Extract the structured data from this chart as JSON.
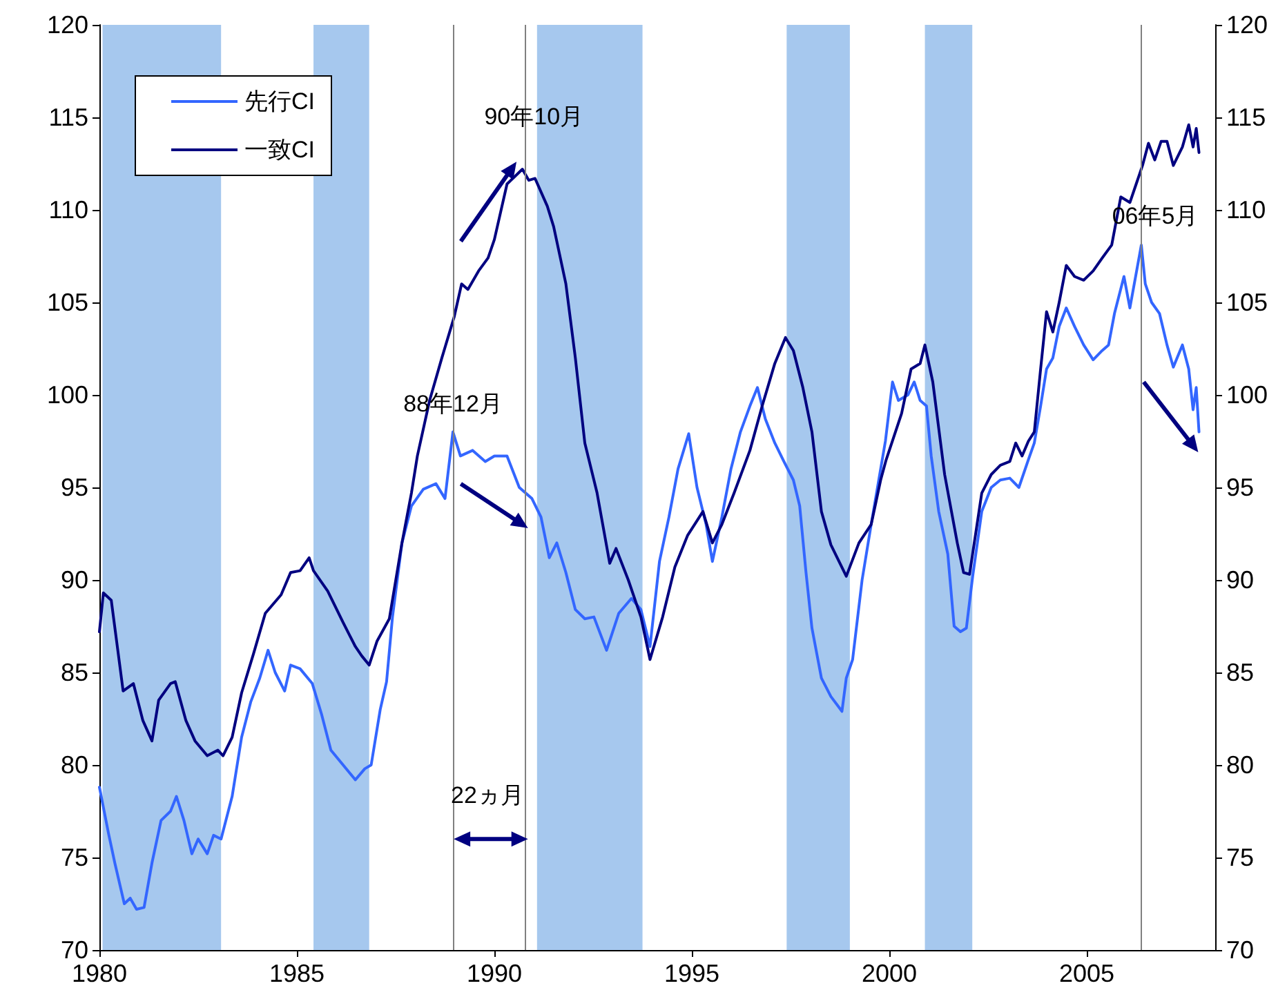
{
  "chart_data": {
    "type": "line",
    "xlim": [
      1980,
      2008.25
    ],
    "xticks": [
      1980,
      1985,
      1990,
      1995,
      2000,
      2005
    ],
    "ylim": [
      70,
      120
    ],
    "yticks": [
      70,
      75,
      80,
      85,
      90,
      95,
      100,
      105,
      110,
      115,
      120
    ],
    "y2lim": [
      70,
      120
    ],
    "y2ticks": [
      70,
      75,
      80,
      85,
      90,
      95,
      100,
      105,
      110,
      115,
      120
    ],
    "grid": false,
    "legend": "top left",
    "marker": "none",
    "line_style": "solid",
    "series": [
      {
        "name": "先行CI",
        "color": "#3366ff",
        "x": [
          1980.0,
          1980.23,
          1980.39,
          1980.63,
          1980.78,
          1980.94,
          1981.13,
          1981.33,
          1981.56,
          1981.8,
          1981.95,
          1982.14,
          1982.34,
          1982.5,
          1982.73,
          1982.89,
          1983.08,
          1983.36,
          1983.6,
          1983.83,
          1984.06,
          1984.27,
          1984.45,
          1984.69,
          1984.84,
          1985.08,
          1985.39,
          1985.63,
          1985.86,
          1986.17,
          1986.48,
          1986.72,
          1986.88,
          1987.11,
          1987.27,
          1987.42,
          1987.66,
          1987.9,
          1988.2,
          1988.52,
          1988.75,
          1988.95,
          1989.14,
          1989.45,
          1989.77,
          1990.0,
          1990.32,
          1990.63,
          1990.95,
          1991.18,
          1991.39,
          1991.58,
          1991.81,
          1992.05,
          1992.29,
          1992.52,
          1992.84,
          1993.15,
          1993.47,
          1993.71,
          1993.94,
          1994.18,
          1994.42,
          1994.65,
          1994.92,
          1995.13,
          1995.36,
          1995.52,
          1995.76,
          1995.99,
          1996.23,
          1996.47,
          1996.66,
          1996.86,
          1997.1,
          1997.33,
          1997.57,
          1997.73,
          1997.89,
          1998.04,
          1998.28,
          1998.52,
          1998.8,
          1998.91,
          1999.07,
          1999.31,
          1999.54,
          1999.9,
          2000.08,
          2000.23,
          2000.47,
          2000.63,
          2000.78,
          2000.94,
          2001.06,
          2001.25,
          2001.48,
          2001.64,
          2001.8,
          2001.95,
          2002.11,
          2002.34,
          2002.58,
          2002.81,
          2003.05,
          2003.28,
          2003.52,
          2003.67,
          2003.83,
          2003.98,
          2004.14,
          2004.3,
          2004.48,
          2004.69,
          2004.92,
          2005.16,
          2005.39,
          2005.55,
          2005.7,
          2005.94,
          2006.09,
          2006.38,
          2006.48,
          2006.64,
          2006.84,
          2007.03,
          2007.19,
          2007.42,
          2007.58,
          2007.69,
          2007.77,
          2007.84
        ],
        "values": [
          78.8,
          76.3,
          74.7,
          72.5,
          72.8,
          72.2,
          72.3,
          74.7,
          77.0,
          77.5,
          78.3,
          77.0,
          75.2,
          76.0,
          75.2,
          76.2,
          76.0,
          78.3,
          81.5,
          83.4,
          84.7,
          86.2,
          85.0,
          84.0,
          85.4,
          85.2,
          84.4,
          82.7,
          80.8,
          80.0,
          79.2,
          79.8,
          80.0,
          83.0,
          84.5,
          88.0,
          92.0,
          94.0,
          94.9,
          95.2,
          94.4,
          98.0,
          96.7,
          97.0,
          96.4,
          96.7,
          96.7,
          95.0,
          94.4,
          93.4,
          91.2,
          92.0,
          90.4,
          88.4,
          87.9,
          88.0,
          86.2,
          88.2,
          89.0,
          88.4,
          86.4,
          91.0,
          93.4,
          96.0,
          97.9,
          95.0,
          93.0,
          91.0,
          93.4,
          96.0,
          98.0,
          99.4,
          100.4,
          98.7,
          97.4,
          96.4,
          95.4,
          94.0,
          90.4,
          87.4,
          84.7,
          83.7,
          82.9,
          84.7,
          85.7,
          90.0,
          93.0,
          97.5,
          100.7,
          99.7,
          100.0,
          100.7,
          99.7,
          99.4,
          96.7,
          93.7,
          91.4,
          87.5,
          87.2,
          87.4,
          90.2,
          93.7,
          95.0,
          95.4,
          95.5,
          95.0,
          96.5,
          97.4,
          99.4,
          101.4,
          102.0,
          103.7,
          104.7,
          103.7,
          102.7,
          101.9,
          102.4,
          102.7,
          104.4,
          106.4,
          104.7,
          108.1,
          106.0,
          105.0,
          104.4,
          102.7,
          101.5,
          102.7,
          101.4,
          99.2,
          100.4,
          98.0
        ]
      },
      {
        "name": "一致CI",
        "color": "#000080",
        "x": [
          1980.0,
          1980.1,
          1980.3,
          1980.6,
          1980.86,
          1981.1,
          1981.33,
          1981.5,
          1981.8,
          1981.92,
          1982.19,
          1982.42,
          1982.73,
          1983.0,
          1983.13,
          1983.36,
          1983.6,
          1983.9,
          1984.2,
          1984.6,
          1984.84,
          1985.08,
          1985.31,
          1985.42,
          1985.78,
          1986.17,
          1986.48,
          1986.64,
          1986.83,
          1987.03,
          1987.34,
          1987.66,
          1987.9,
          1988.05,
          1988.36,
          1988.67,
          1988.98,
          1989.17,
          1989.33,
          1989.6,
          1989.84,
          1990.0,
          1990.32,
          1990.71,
          1990.87,
          1991.03,
          1991.34,
          1991.5,
          1991.81,
          1992.05,
          1992.29,
          1992.6,
          1992.92,
          1993.08,
          1993.39,
          1993.71,
          1993.94,
          1994.26,
          1994.57,
          1994.89,
          1995.28,
          1995.52,
          1995.76,
          1996.07,
          1996.47,
          1996.78,
          1997.1,
          1997.37,
          1997.57,
          1997.81,
          1998.04,
          1998.28,
          1998.52,
          1998.91,
          1999.23,
          1999.54,
          1999.78,
          1999.92,
          2000.31,
          2000.55,
          2000.78,
          2000.9,
          2001.1,
          2001.4,
          2001.72,
          2001.88,
          2002.03,
          2002.34,
          2002.58,
          2002.81,
          2003.05,
          2003.2,
          2003.36,
          2003.52,
          2003.67,
          2003.83,
          2003.98,
          2004.14,
          2004.3,
          2004.48,
          2004.69,
          2004.92,
          2005.16,
          2005.39,
          2005.63,
          2005.86,
          2006.09,
          2006.25,
          2006.41,
          2006.56,
          2006.72,
          2006.88,
          2007.03,
          2007.19,
          2007.42,
          2007.58,
          2007.69,
          2007.77,
          2007.84
        ],
        "values": [
          87.2,
          89.3,
          88.9,
          84.0,
          84.4,
          82.4,
          81.3,
          83.5,
          84.4,
          84.5,
          82.4,
          81.3,
          80.5,
          80.8,
          80.5,
          81.5,
          83.9,
          86.0,
          88.2,
          89.2,
          90.4,
          90.5,
          91.2,
          90.5,
          89.4,
          87.7,
          86.4,
          85.9,
          85.4,
          86.7,
          87.9,
          92.0,
          94.7,
          96.7,
          99.7,
          102.0,
          104.2,
          106.0,
          105.7,
          106.7,
          107.4,
          108.4,
          111.4,
          112.2,
          111.6,
          111.7,
          110.2,
          109.1,
          106.0,
          102.0,
          97.4,
          94.7,
          90.9,
          91.7,
          90.0,
          88.0,
          85.7,
          88.0,
          90.7,
          92.4,
          93.7,
          92.0,
          93.0,
          94.7,
          97.0,
          99.4,
          101.7,
          103.1,
          102.4,
          100.4,
          98.0,
          93.7,
          91.9,
          90.2,
          92.0,
          93.0,
          95.4,
          96.5,
          99.0,
          101.4,
          101.7,
          102.7,
          100.7,
          95.7,
          92.0,
          90.4,
          90.3,
          94.7,
          95.7,
          96.2,
          96.4,
          97.4,
          96.7,
          97.5,
          98.0,
          101.4,
          104.5,
          103.4,
          105.0,
          107.0,
          106.4,
          106.2,
          106.7,
          107.4,
          108.1,
          110.7,
          110.4,
          111.4,
          112.4,
          113.6,
          112.7,
          113.7,
          113.7,
          112.4,
          113.4,
          114.6,
          113.4,
          114.4,
          113.1
        ]
      }
    ],
    "bands": [
      {
        "axis": "x",
        "from": 1980.08,
        "to": 1983.08,
        "color": "#a6c8ee"
      },
      {
        "axis": "x",
        "from": 1985.42,
        "to": 1986.83,
        "color": "#a6c8ee"
      },
      {
        "axis": "x",
        "from": 1991.08,
        "to": 1993.75,
        "color": "#a6c8ee"
      },
      {
        "axis": "x",
        "from": 1997.4,
        "to": 1999.0,
        "color": "#a6c8ee"
      },
      {
        "axis": "x",
        "from": 2000.9,
        "to": 2002.1,
        "color": "#a6c8ee"
      }
    ],
    "ref_lines": [
      {
        "axis": "x",
        "value": 1988.95,
        "label": "88年12月",
        "color": "#808080"
      },
      {
        "axis": "x",
        "value": 1990.79,
        "label": "90年10月",
        "color": "#808080"
      },
      {
        "axis": "x",
        "value": 2006.38,
        "label": "06年5月",
        "color": "#808080"
      }
    ],
    "annotations": [
      "22ヵ月"
    ]
  }
}
